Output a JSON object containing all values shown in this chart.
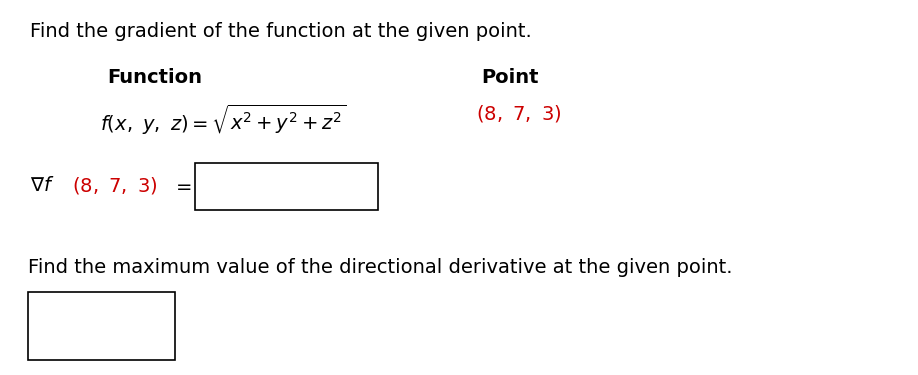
{
  "title": "Find the gradient of the function at the given point.",
  "col1_header": "Function",
  "col2_header": "Point",
  "point_text": "(8, 7, 3)",
  "bottom_text": "Find the maximum value of the directional derivative at the given point.",
  "bg_color": "#ffffff",
  "text_color": "#000000",
  "red_color": "#cc0000",
  "title_fontsize": 14,
  "header_fontsize": 14,
  "body_fontsize": 14
}
